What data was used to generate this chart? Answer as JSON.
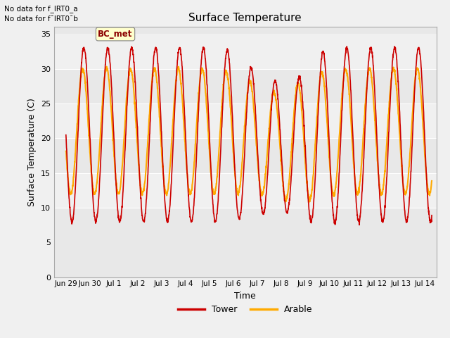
{
  "title": "Surface Temperature",
  "ylabel": "Surface Temperature (C)",
  "xlabel": "Time",
  "ylim": [
    0,
    36
  ],
  "yticks": [
    0,
    5,
    10,
    15,
    20,
    25,
    30,
    35
  ],
  "no_data_text_1": "No data for f_IRT0_a",
  "no_data_text_2": "No data for f¯IRT0¯b",
  "bc_met_label": "BC_met",
  "tower_color": "#cc0000",
  "arable_color": "#ffaa00",
  "fig_bg_color": "#f0f0f0",
  "plot_bg_color": "#e8e8e8",
  "legend_labels": [
    "Tower",
    "Arable"
  ],
  "x_tick_labels": [
    "Jun 29",
    "Jun 30",
    "Jul 1",
    "Jul 2",
    "Jul 3",
    "Jul 4",
    "Jul 5",
    "Jul 6",
    "Jul 7",
    "Jul 8",
    "Jul 9",
    "Jul 10",
    "Jul 11",
    "Jul 12",
    "Jul 13",
    "Jul 14"
  ],
  "n_days": 15.3,
  "stripe_light": "#f5f5f5",
  "stripe_dark": "#dcdcdc",
  "grid_color": "#c8c8c8"
}
